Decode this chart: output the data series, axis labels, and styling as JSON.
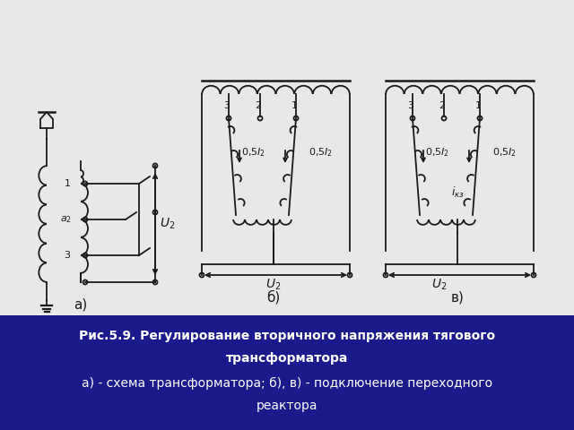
{
  "title_line1": "Рис.5.9. Регулирование вторичного напряжения тягового",
  "title_line2": "трансформатора",
  "title_line3": "а) - схема трансформатора; б), в) - подключение переходного",
  "title_line4": "реактора",
  "caption_bg": "#1a1a8c",
  "caption_text_color": "#ffffff",
  "bg_color": "#d8d8d8",
  "diagram_ink": "#1a1a1a",
  "label_a": "а)",
  "label_b": "б)",
  "label_v": "в)"
}
